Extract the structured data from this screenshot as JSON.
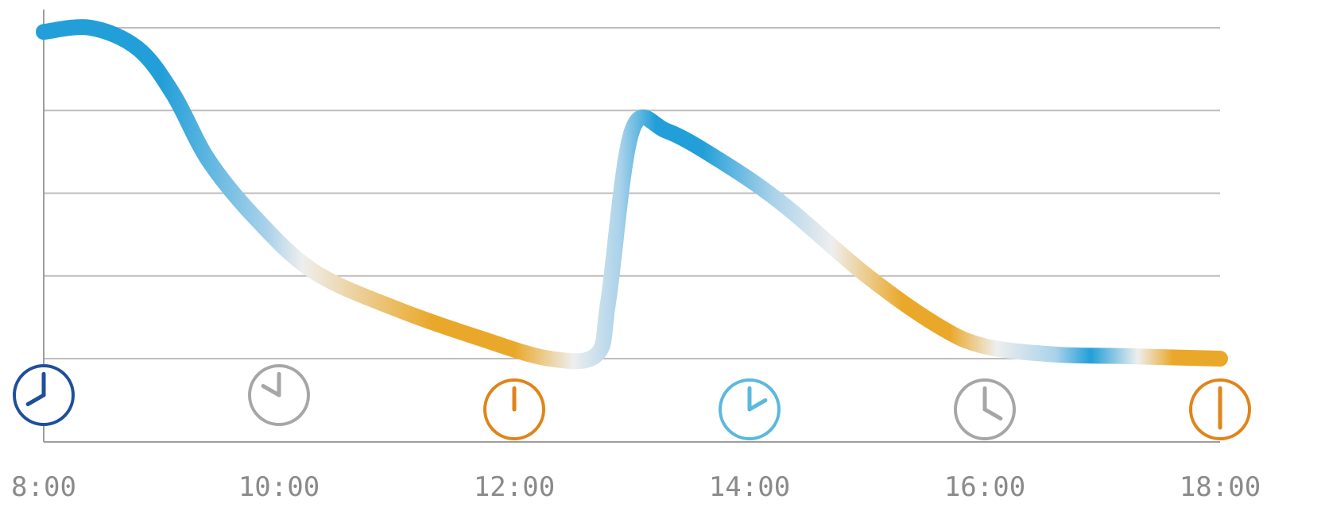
{
  "chart_data": {
    "type": "line",
    "title": "",
    "xlabel": "",
    "ylabel": "",
    "x_ticks": [
      "8:00",
      "10:00",
      "12:00",
      "14:00",
      "16:00",
      "18:00"
    ],
    "xlim": [
      8,
      18
    ],
    "ylim": [
      0,
      4
    ],
    "grid": true,
    "legend": "none",
    "series": [
      {
        "x": [
          8.0,
          8.4,
          8.8,
          9.1,
          9.4,
          9.8,
          10.3,
          11.0,
          11.7,
          12.3,
          12.7,
          12.8,
          13.0,
          13.3,
          13.8,
          14.3,
          15.0,
          15.6,
          16.0,
          16.6,
          17.2,
          18.0
        ],
        "y": [
          3.95,
          4.0,
          3.75,
          3.2,
          2.4,
          1.7,
          1.05,
          0.6,
          0.25,
          0.0,
          0.05,
          0.7,
          2.75,
          2.75,
          2.35,
          1.85,
          1.0,
          0.4,
          0.15,
          0.05,
          0.03,
          0.0
        ]
      }
    ],
    "clock_markers": [
      {
        "x": 8,
        "hour": 8,
        "color": "#1f4f9a"
      },
      {
        "x": 10,
        "hour": 10,
        "color": "#a6a6a6"
      },
      {
        "x": 12,
        "hour": 12,
        "color": "#e0841a"
      },
      {
        "x": 14,
        "hour": 14,
        "color": "#5bb8de"
      },
      {
        "x": 16,
        "hour": 16,
        "color": "#a6a6a6"
      },
      {
        "x": 18,
        "hour": 18,
        "color": "#e0841a"
      }
    ],
    "colors": {
      "grid": "#bdbdbd",
      "axis": "#9e9e9e",
      "line_blue": "#229fd8",
      "line_light_blue": "#aad2ea",
      "line_white": "#eeeeee",
      "line_orange": "#eaa82a"
    }
  }
}
